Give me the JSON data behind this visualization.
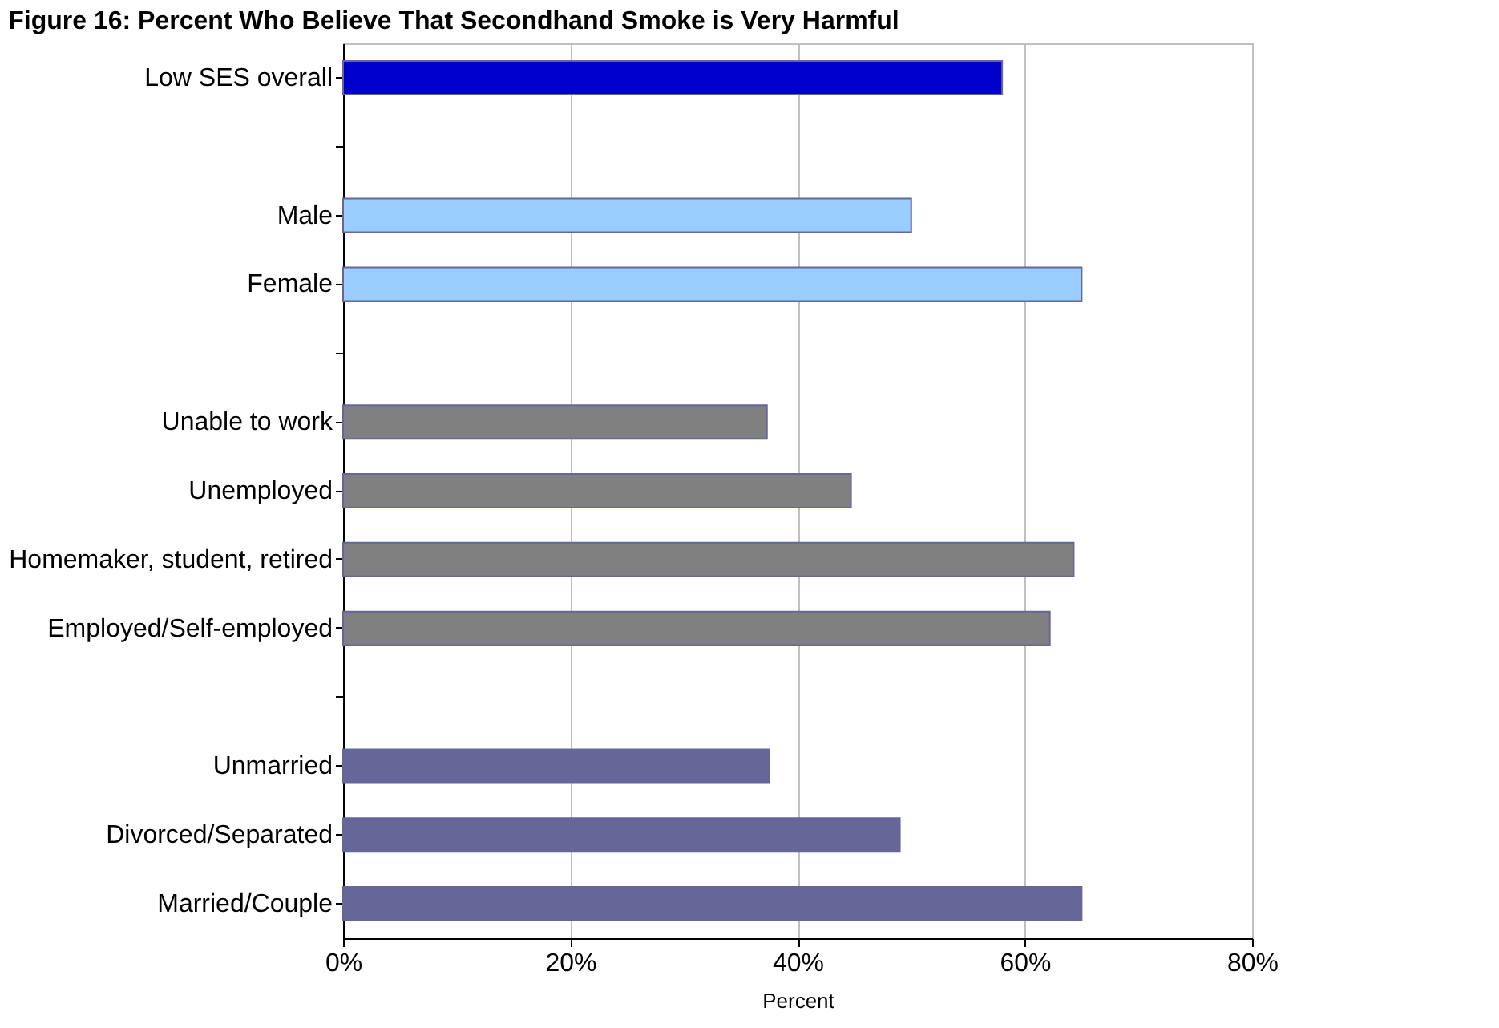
{
  "chart_data": {
    "type": "bar",
    "orientation": "horizontal",
    "title": "Figure 16: Percent Who Believe That Secondhand Smoke is Very Harmful",
    "xlabel": "Percent",
    "categories": [
      "Low SES overall",
      null,
      "Male",
      "Female",
      null,
      "Unable to work",
      "Unemployed",
      "Homemaker, student, retired",
      "Employed/Self-employed",
      null,
      "Unmarried",
      "Divorced/Separated",
      "Married/Couple"
    ],
    "values": [
      58,
      null,
      50,
      65,
      null,
      37.3,
      44.7,
      64.3,
      62.2,
      null,
      37.5,
      49,
      65
    ],
    "colors": [
      "#0000cc",
      null,
      "#99ccff",
      "#99ccff",
      null,
      "#808080",
      "#808080",
      "#808080",
      "#808080",
      null,
      "#666699",
      "#666699",
      "#666699"
    ],
    "xlim": [
      0,
      80
    ],
    "xticks": [
      {
        "value": 0,
        "label": "0%"
      },
      {
        "value": 20,
        "label": "20%"
      },
      {
        "value": 40,
        "label": "40%"
      },
      {
        "value": 60,
        "label": "60%"
      },
      {
        "value": 80,
        "label": "80%"
      }
    ],
    "grid": "x"
  }
}
